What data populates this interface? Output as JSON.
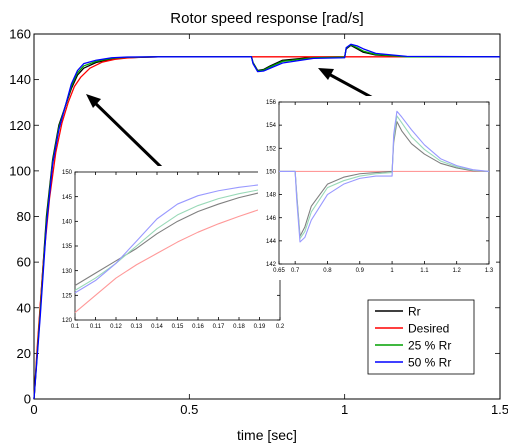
{
  "colors": {
    "rr": "#000000",
    "desired": "#ff0000",
    "r25": "#00a000",
    "r50": "#0000ff",
    "inset_rr": "#808080",
    "inset_desired": "#ff9999",
    "inset_r25": "#99d9b8",
    "inset_r50": "#9999ff"
  },
  "chart_data": [
    {
      "type": "line",
      "title": "Rotor speed response [rad/s]",
      "xlabel": "time [sec]",
      "ylabel": "",
      "xlim": [
        0,
        1.5
      ],
      "ylim": [
        0,
        160
      ],
      "xticks": [
        0,
        0.5,
        1,
        1.5
      ],
      "xtick_labels": [
        "0",
        "0.5",
        "1",
        "1.5"
      ],
      "yticks": [
        0,
        20,
        40,
        60,
        80,
        100,
        120,
        140,
        160
      ],
      "ytick_labels": [
        "0",
        "20",
        "40",
        "60",
        "80",
        "100",
        "120",
        "140",
        "160"
      ],
      "grid": false,
      "legend_position": "bottom-right",
      "series": [
        {
          "name": "Rr",
          "color_key": "rr",
          "x": [
            0,
            0.02,
            0.04,
            0.06,
            0.08,
            0.1,
            0.12,
            0.14,
            0.16,
            0.2,
            0.25,
            0.3,
            0.4,
            0.5,
            0.7,
            0.705,
            0.72,
            0.74,
            0.76,
            0.8,
            0.9,
            1.0,
            1.005,
            1.02,
            1.04,
            1.06,
            1.1,
            1.2,
            1.5
          ],
          "y": [
            0,
            40,
            80,
            105,
            120,
            128,
            136,
            142,
            145,
            147.5,
            149,
            149.6,
            150,
            150,
            150,
            147.5,
            144,
            144.5,
            146,
            148.5,
            149.8,
            150,
            153.5,
            155,
            153.5,
            152,
            150.8,
            150,
            150
          ]
        },
        {
          "name": "Desired",
          "color_key": "desired",
          "x": [
            0,
            0.01,
            0.03,
            0.05,
            0.07,
            0.09,
            0.11,
            0.13,
            0.15,
            0.18,
            0.22,
            0.26,
            0.3,
            0.35,
            0.4,
            0.5,
            1.5
          ],
          "y": [
            0,
            22,
            60,
            88,
            108,
            121,
            130,
            137,
            141,
            145,
            147.7,
            148.9,
            149.5,
            149.85,
            150,
            150,
            150
          ]
        },
        {
          "name": "25 % Rr",
          "color_key": "r25",
          "x": [
            0,
            0.02,
            0.04,
            0.06,
            0.08,
            0.1,
            0.12,
            0.14,
            0.16,
            0.2,
            0.25,
            0.3,
            0.4,
            0.5,
            0.7,
            0.705,
            0.72,
            0.74,
            0.76,
            0.8,
            0.9,
            1.0,
            1.005,
            1.02,
            1.04,
            1.06,
            1.1,
            1.2,
            1.5
          ],
          "y": [
            0,
            38,
            78,
            104,
            119,
            128,
            137,
            143,
            146,
            148,
            149.3,
            149.8,
            150,
            150,
            150,
            147.3,
            143.8,
            144.2,
            145.6,
            148,
            149.6,
            149.9,
            153.8,
            155.3,
            154,
            152.5,
            151,
            150,
            150
          ]
        },
        {
          "name": "50 % Rr",
          "color_key": "r50",
          "x": [
            0,
            0.02,
            0.04,
            0.06,
            0.08,
            0.1,
            0.12,
            0.14,
            0.16,
            0.2,
            0.25,
            0.3,
            0.4,
            0.5,
            0.7,
            0.705,
            0.72,
            0.74,
            0.76,
            0.8,
            0.9,
            1.0,
            1.005,
            1.02,
            1.04,
            1.06,
            1.1,
            1.2,
            1.5
          ],
          "y": [
            0,
            36,
            76,
            103,
            118,
            128,
            138,
            144,
            147,
            148.5,
            149.6,
            149.9,
            150,
            150,
            150,
            147,
            143.5,
            143.8,
            145,
            147.3,
            149.3,
            149.6,
            154,
            155.5,
            154.8,
            153.5,
            151.5,
            150.2,
            150
          ]
        }
      ]
    },
    {
      "type": "line",
      "title": "",
      "xlim": [
        0.1,
        0.2
      ],
      "ylim": [
        120,
        150
      ],
      "xticks": [
        0.1,
        0.11,
        0.12,
        0.13,
        0.14,
        0.15,
        0.16,
        0.17,
        0.18,
        0.19,
        0.2
      ],
      "xtick_labels": [
        "0.1",
        "0.11",
        "0.12",
        "0.13",
        "0.14",
        "0.15",
        "0.16",
        "0.17",
        "0.18",
        "0.19",
        "0.2"
      ],
      "yticks": [
        120,
        125,
        130,
        135,
        140,
        145,
        150
      ],
      "ytick_labels": [
        "120",
        "125",
        "130",
        "135",
        "140",
        "145",
        "150"
      ],
      "series": [
        {
          "color_key": "inset_rr",
          "x": [
            0.1,
            0.11,
            0.12,
            0.13,
            0.14,
            0.15,
            0.16,
            0.17,
            0.18,
            0.19,
            0.2
          ],
          "y": [
            127,
            129.5,
            132,
            134.5,
            137.5,
            140,
            142,
            143.5,
            144.8,
            145.8,
            146.5
          ]
        },
        {
          "color_key": "inset_desired",
          "x": [
            0.1,
            0.11,
            0.12,
            0.13,
            0.14,
            0.15,
            0.16,
            0.17,
            0.18,
            0.19,
            0.2
          ],
          "y": [
            121.5,
            125,
            128.5,
            131.2,
            133.5,
            135.8,
            137.8,
            139.5,
            141,
            142.4,
            143.7
          ]
        },
        {
          "color_key": "inset_r25",
          "x": [
            0.1,
            0.11,
            0.12,
            0.13,
            0.14,
            0.15,
            0.16,
            0.17,
            0.18,
            0.19,
            0.2
          ],
          "y": [
            126,
            128.5,
            131.5,
            135,
            138.5,
            141.3,
            143.2,
            144.6,
            145.6,
            146.4,
            147
          ]
        },
        {
          "color_key": "inset_r50",
          "x": [
            0.1,
            0.11,
            0.12,
            0.13,
            0.14,
            0.15,
            0.16,
            0.17,
            0.18,
            0.19,
            0.2
          ],
          "y": [
            125.5,
            128,
            131.5,
            136,
            140.5,
            143.5,
            145.2,
            146.2,
            146.9,
            147.4,
            147.8
          ]
        }
      ]
    },
    {
      "type": "line",
      "title": "",
      "xlim": [
        0.65,
        1.3
      ],
      "ylim": [
        142,
        156
      ],
      "xticks": [
        0.65,
        0.7,
        0.8,
        0.9,
        1,
        1.1,
        1.2,
        1.3
      ],
      "xtick_labels": [
        "0.65",
        "0.7",
        "0.8",
        "0.9",
        "1",
        "1.1",
        "1.2",
        "1.3"
      ],
      "yticks": [
        142,
        144,
        146,
        148,
        150,
        152,
        154,
        156
      ],
      "ytick_labels": [
        "142",
        "144",
        "146",
        "148",
        "150",
        "152",
        "154",
        "156"
      ],
      "series": [
        {
          "color_key": "inset_desired",
          "x": [
            0.65,
            1.3
          ],
          "y": [
            150,
            150
          ]
        },
        {
          "color_key": "inset_rr",
          "x": [
            0.65,
            0.7,
            0.705,
            0.715,
            0.73,
            0.75,
            0.8,
            0.85,
            0.9,
            0.95,
            1.0,
            1.005,
            1.015,
            1.03,
            1.06,
            1.1,
            1.15,
            1.2,
            1.25,
            1.3
          ],
          "y": [
            150,
            150,
            148,
            144.4,
            145.2,
            147,
            148.9,
            149.5,
            149.8,
            149.9,
            150,
            152.5,
            154.3,
            153.5,
            152.4,
            151.5,
            150.7,
            150.3,
            150.05,
            150
          ]
        },
        {
          "color_key": "inset_r25",
          "x": [
            0.65,
            0.7,
            0.705,
            0.715,
            0.73,
            0.75,
            0.8,
            0.85,
            0.9,
            0.95,
            1.0,
            1.005,
            1.015,
            1.03,
            1.06,
            1.1,
            1.15,
            1.2,
            1.25,
            1.3
          ],
          "y": [
            150,
            150,
            147.8,
            144.2,
            144.8,
            146.5,
            148.6,
            149.2,
            149.6,
            149.8,
            149.9,
            152.8,
            154.8,
            154.2,
            153,
            151.9,
            150.9,
            150.4,
            150.1,
            150
          ]
        },
        {
          "color_key": "inset_r50",
          "x": [
            0.65,
            0.7,
            0.705,
            0.715,
            0.73,
            0.75,
            0.8,
            0.85,
            0.9,
            0.95,
            1.0,
            1.005,
            1.015,
            1.03,
            1.06,
            1.1,
            1.15,
            1.2,
            1.25,
            1.3
          ],
          "y": [
            150,
            150,
            147.5,
            143.9,
            144.3,
            145.8,
            148,
            148.9,
            149.4,
            149.6,
            149.6,
            153.2,
            155.2,
            154.7,
            153.6,
            152.3,
            151.1,
            150.5,
            150.15,
            150
          ]
        }
      ]
    }
  ]
}
